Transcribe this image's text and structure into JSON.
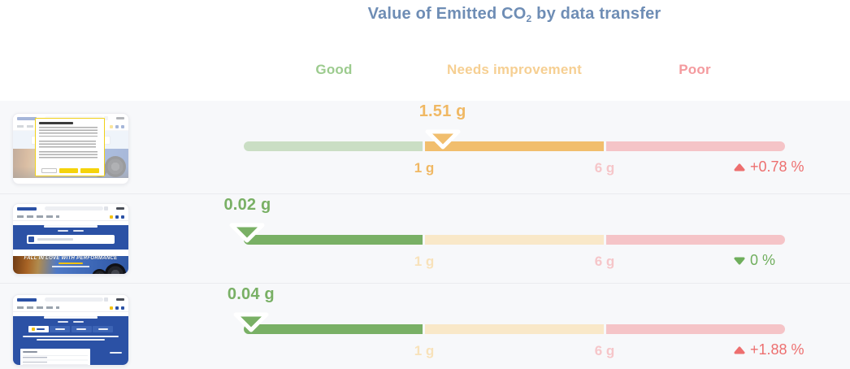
{
  "page": {
    "top_background": "#ffffff",
    "rows_background": "#f7f8fa",
    "divider_color": "#eaebef"
  },
  "title": {
    "pre": "Value of Emitted CO",
    "sub": "2",
    "post": " by data transfer",
    "color": "#6e8db5"
  },
  "zone_headers": [
    {
      "label": "Good",
      "color": "#9ccb8e"
    },
    {
      "label": "Needs improvement",
      "color": "#f6cf92"
    },
    {
      "label": "Poor",
      "color": "#f49a9e"
    }
  ],
  "gauge": {
    "thresholds_g": [
      1,
      6
    ],
    "tick_labels": [
      "1 g",
      "6 g"
    ],
    "poor_zone_max_g": 36
  },
  "icons": {
    "value_marker": "▼",
    "trend_up": "▲",
    "trend_down": "▼"
  },
  "rows": [
    {
      "value_g": 1.51,
      "value_label": "1.51 g",
      "active_zone": "needs_improvement",
      "value_color": "#f0b863",
      "marker_color": "#f1be6d",
      "segment_colors": [
        "#cadec4",
        "#f1be6d",
        "#f5c4c7"
      ],
      "tick_colors": [
        "#f0b863",
        "#f6c6c9"
      ],
      "trend": {
        "direction": "up",
        "label": "+0.78 %",
        "color": "#ed6f6f"
      },
      "thumbnail": {
        "description": "Michelin web page dimmed behind a yellow-bordered cookie consent dialog with yellow action buttons"
      }
    },
    {
      "value_g": 0.02,
      "value_label": "0.02 g",
      "active_zone": "good",
      "value_color": "#79b065",
      "marker_color": "#79b065",
      "segment_colors": [
        "#79b065",
        "#f9e8c8",
        "#f5c4c7"
      ],
      "tick_colors": [
        "#f8e2ba",
        "#f6c6c9"
      ],
      "trend": {
        "direction": "down",
        "label": "0 %",
        "color": "#6fae5c"
      },
      "thumbnail": {
        "description": "Michelin homepage with blue hero, tire search bar, autumn road photo and tires",
        "hero_text": "FALL IN LOVE WITH PERFORMANCE"
      }
    },
    {
      "value_g": 0.04,
      "value_label": "0.04 g",
      "active_zone": "good",
      "value_color": "#79b065",
      "marker_color": "#79b065",
      "segment_colors": [
        "#79b065",
        "#f9e8c8",
        "#f5c4c7"
      ],
      "tick_colors": [
        "#f8e2ba",
        "#f6c6c9"
      ],
      "trend": {
        "direction": "up",
        "label": "+1.88 %",
        "color": "#ed6f6f"
      },
      "thumbnail": {
        "description": "Michelin page with blue background, tab bar and white results list panel"
      }
    }
  ],
  "chart_data": {
    "type": "bullet",
    "title": "Value of Emitted CO2 by data transfer",
    "zone_labels": [
      "Good",
      "Needs improvement",
      "Poor"
    ],
    "zone_boundaries_g": [
      1,
      6
    ],
    "rows": [
      {
        "page": "Page with cookie consent dialog",
        "co2_g": 1.51,
        "zone": "Needs improvement",
        "trend_direction": "up",
        "trend_label": "+0.78 %"
      },
      {
        "page": "Homepage hero banner",
        "co2_g": 0.02,
        "zone": "Good",
        "trend_direction": "down",
        "trend_label": "0 %"
      },
      {
        "page": "Results list page",
        "co2_g": 0.04,
        "zone": "Good",
        "trend_direction": "up",
        "trend_label": "+1.88 %"
      }
    ]
  }
}
